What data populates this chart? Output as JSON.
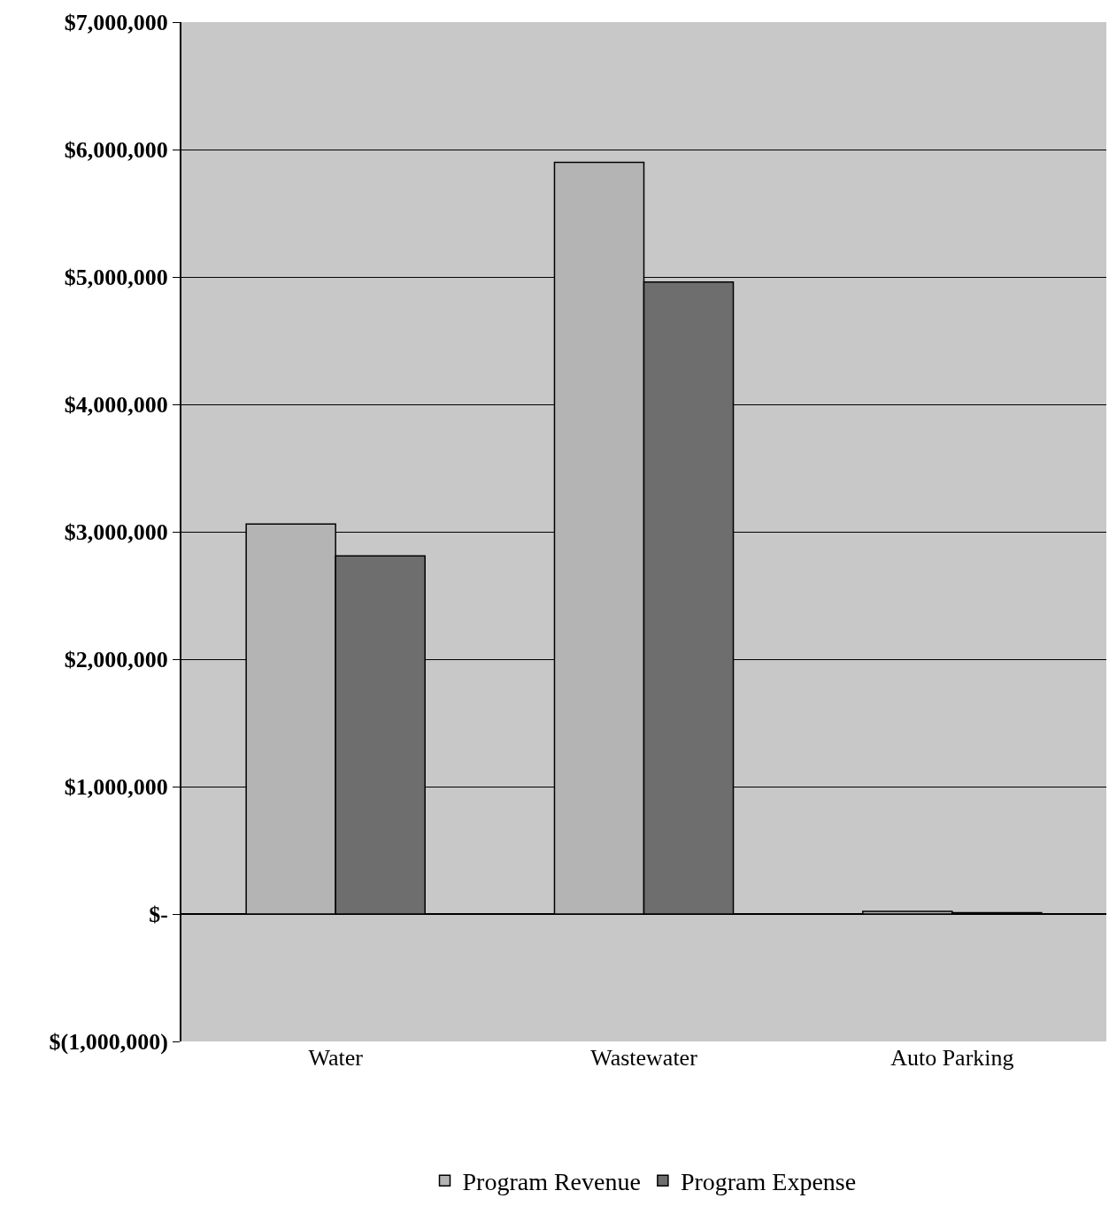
{
  "chart_data": {
    "type": "bar",
    "categories": [
      "Water",
      "Wastewater",
      "Auto Parking"
    ],
    "series": [
      {
        "name": "Program Revenue",
        "color": "#b4b4b4",
        "values": [
          3060000,
          5900000,
          20000
        ]
      },
      {
        "name": "Program Expense",
        "color": "#6e6e6e",
        "values": [
          2810000,
          4960000,
          10000
        ]
      }
    ],
    "ylim": [
      -1000000,
      7000000
    ],
    "yticks": [
      {
        "value": -1000000,
        "label": "$(1,000,000)"
      },
      {
        "value": 0,
        "label": "$-"
      },
      {
        "value": 1000000,
        "label": "$1,000,000"
      },
      {
        "value": 2000000,
        "label": "$2,000,000"
      },
      {
        "value": 3000000,
        "label": "$3,000,000"
      },
      {
        "value": 4000000,
        "label": "$4,000,000"
      },
      {
        "value": 5000000,
        "label": "$5,000,000"
      },
      {
        "value": 6000000,
        "label": "$6,000,000"
      },
      {
        "value": 7000000,
        "label": "$7,000,000"
      }
    ],
    "grid": "y",
    "legend": "bottom"
  }
}
